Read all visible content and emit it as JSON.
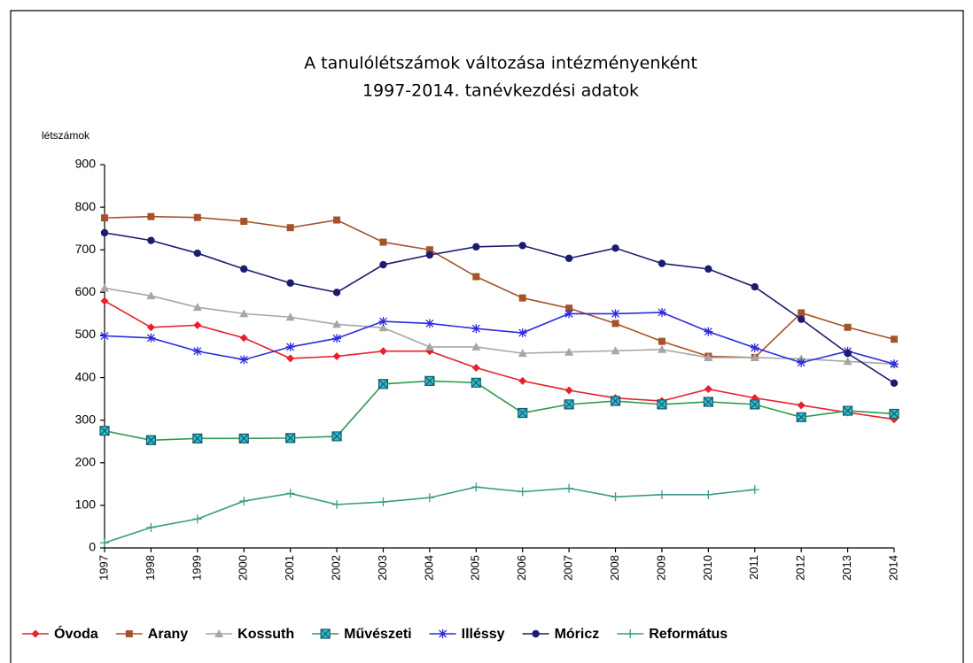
{
  "chart_data": {
    "type": "line",
    "title": "A tanulólétszámok változása intézményenként",
    "subtitle": "1997-2014. tanévkezdési adatok",
    "y_label": "létszámok",
    "categories": [
      "1997",
      "1998",
      "1999",
      "2000",
      "2001",
      "2002",
      "2003",
      "2004",
      "2005",
      "2006",
      "2007",
      "2008",
      "2009",
      "2010",
      "2011",
      "2012",
      "2013",
      "2014"
    ],
    "ylim": [
      0,
      900
    ],
    "yticks": [
      0,
      100,
      200,
      300,
      400,
      500,
      600,
      700,
      800,
      900
    ],
    "legend": "bottom",
    "series": [
      {
        "name": "Óvoda",
        "color": "#e8202a",
        "values": [
          580,
          518,
          523,
          493,
          445,
          450,
          462,
          462,
          423,
          392,
          370,
          352,
          345,
          373,
          352,
          335,
          318,
          302
        ]
      },
      {
        "name": "Arany",
        "color": "#a4532a",
        "values": [
          775,
          778,
          776,
          767,
          752,
          770,
          718,
          700,
          637,
          587,
          563,
          527,
          485,
          450,
          447,
          552,
          518,
          490
        ]
      },
      {
        "name": "Kossuth",
        "color": "#a6a6a6",
        "values": [
          610,
          592,
          565,
          550,
          542,
          525,
          517,
          472,
          472,
          457,
          460,
          463,
          466,
          447,
          447,
          444,
          438,
          432
        ]
      },
      {
        "name": "Művészeti",
        "color": "#2e9a4e",
        "values": [
          275,
          253,
          257,
          257,
          258,
          262,
          385,
          392,
          388,
          317,
          337,
          345,
          337,
          343,
          337,
          307,
          322,
          315
        ]
      },
      {
        "name": "Illéssy",
        "color": "#2b2bdc",
        "values": [
          498,
          493,
          462,
          442,
          472,
          492,
          532,
          527,
          515,
          505,
          550,
          550,
          553,
          508,
          470,
          435,
          462,
          432
        ]
      },
      {
        "name": "Móricz",
        "color": "#1c1c6e",
        "values": [
          740,
          722,
          692,
          655,
          622,
          600,
          665,
          688,
          707,
          710,
          680,
          704,
          668,
          655,
          613,
          537,
          457,
          387
        ]
      },
      {
        "name": "Református",
        "color": "#3a9a8a",
        "values": [
          12,
          48,
          68,
          110,
          128,
          102,
          108,
          118,
          143,
          132,
          140,
          120,
          125,
          125,
          137,
          null,
          null,
          null
        ]
      }
    ]
  }
}
